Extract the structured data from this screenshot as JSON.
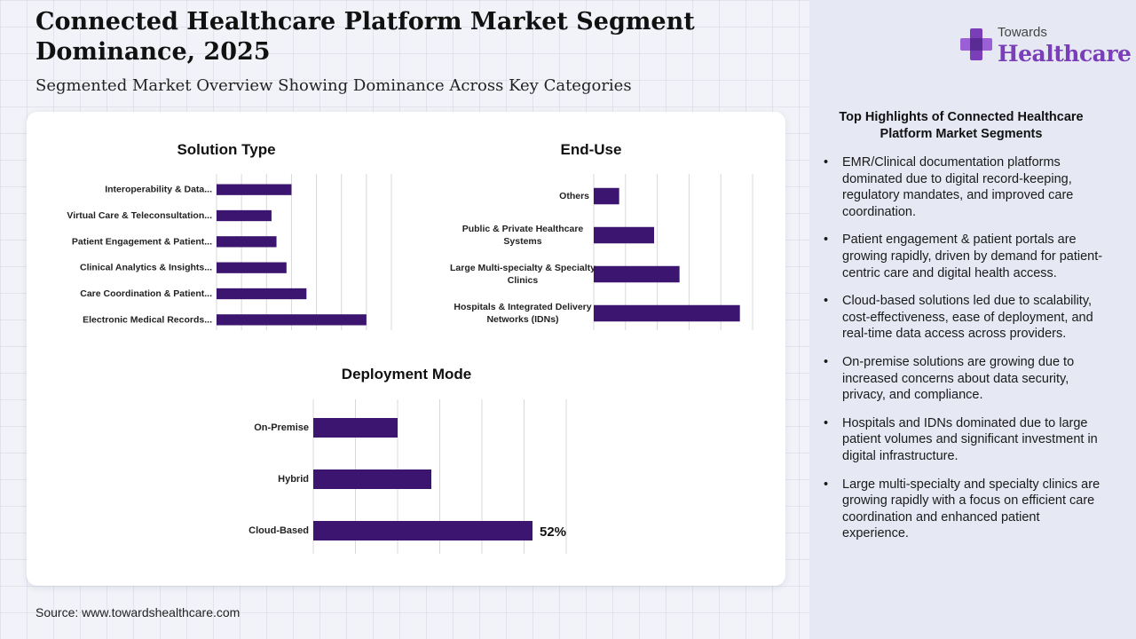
{
  "header": {
    "title": "Connected Healthcare Platform Market Segment Dominance, 2025",
    "subtitle": "Segmented Market Overview Showing Dominance Across Key Categories"
  },
  "logo": {
    "towards": "Towards",
    "healthcare": "Healthcare"
  },
  "colors": {
    "bar": "#3b1570",
    "brand": "#7a3fb8",
    "grid": "#d8d8d8"
  },
  "chart_data": [
    {
      "type": "bar",
      "orientation": "horizontal",
      "title": "Solution Type",
      "categories": [
        "Interoperability & Data...",
        "Virtual Care & Teleconsultation...",
        "Patient Engagement & Patient...",
        "Clinical Analytics & Insights...",
        "Care Coordination & Patient...",
        "Electronic Medical Records..."
      ],
      "values": [
        15,
        11,
        12,
        14,
        18,
        30
      ],
      "xlim": [
        0,
        35
      ],
      "grid": true
    },
    {
      "type": "bar",
      "orientation": "horizontal",
      "title": "End-Use",
      "categories": [
        "Others",
        "Public & Private Healthcare Systems",
        "Large Multi-specialty & Specialty Clinics",
        "Hospitals & Integrated Delivery Networks (IDNs)"
      ],
      "values": [
        8,
        19,
        27,
        46
      ],
      "xlim": [
        0,
        50
      ],
      "grid": true
    },
    {
      "type": "bar",
      "orientation": "horizontal",
      "title": "Deployment Mode",
      "categories": [
        "On-Premise",
        "Hybrid",
        "Cloud-Based"
      ],
      "values": [
        20,
        28,
        52
      ],
      "data_labels": [
        "",
        "",
        "52%"
      ],
      "xlim": [
        0,
        60
      ],
      "grid": true
    }
  ],
  "highlights": {
    "title": "Top Highlights of Connected Healthcare Platform Market Segments",
    "bullet": "•",
    "items": [
      "EMR/Clinical documentation platforms dominated due to digital record-keeping, regulatory mandates, and improved care coordination.",
      "Patient engagement & patient portals are growing rapidly, driven by demand for patient-centric care and digital health access.",
      "Cloud-based solutions led due to scalability, cost-effectiveness, ease of deployment, and real-time data access across providers.",
      "On-premise solutions are growing due to increased concerns about data security, privacy, and compliance.",
      "Hospitals and IDNs dominated due to large patient volumes and significant investment in digital infrastructure.",
      "Large multi-specialty and specialty clinics are growing rapidly with a focus on efficient care coordination and enhanced patient experience."
    ]
  },
  "footer": {
    "source": "Source: www.towardshealthcare.com"
  }
}
